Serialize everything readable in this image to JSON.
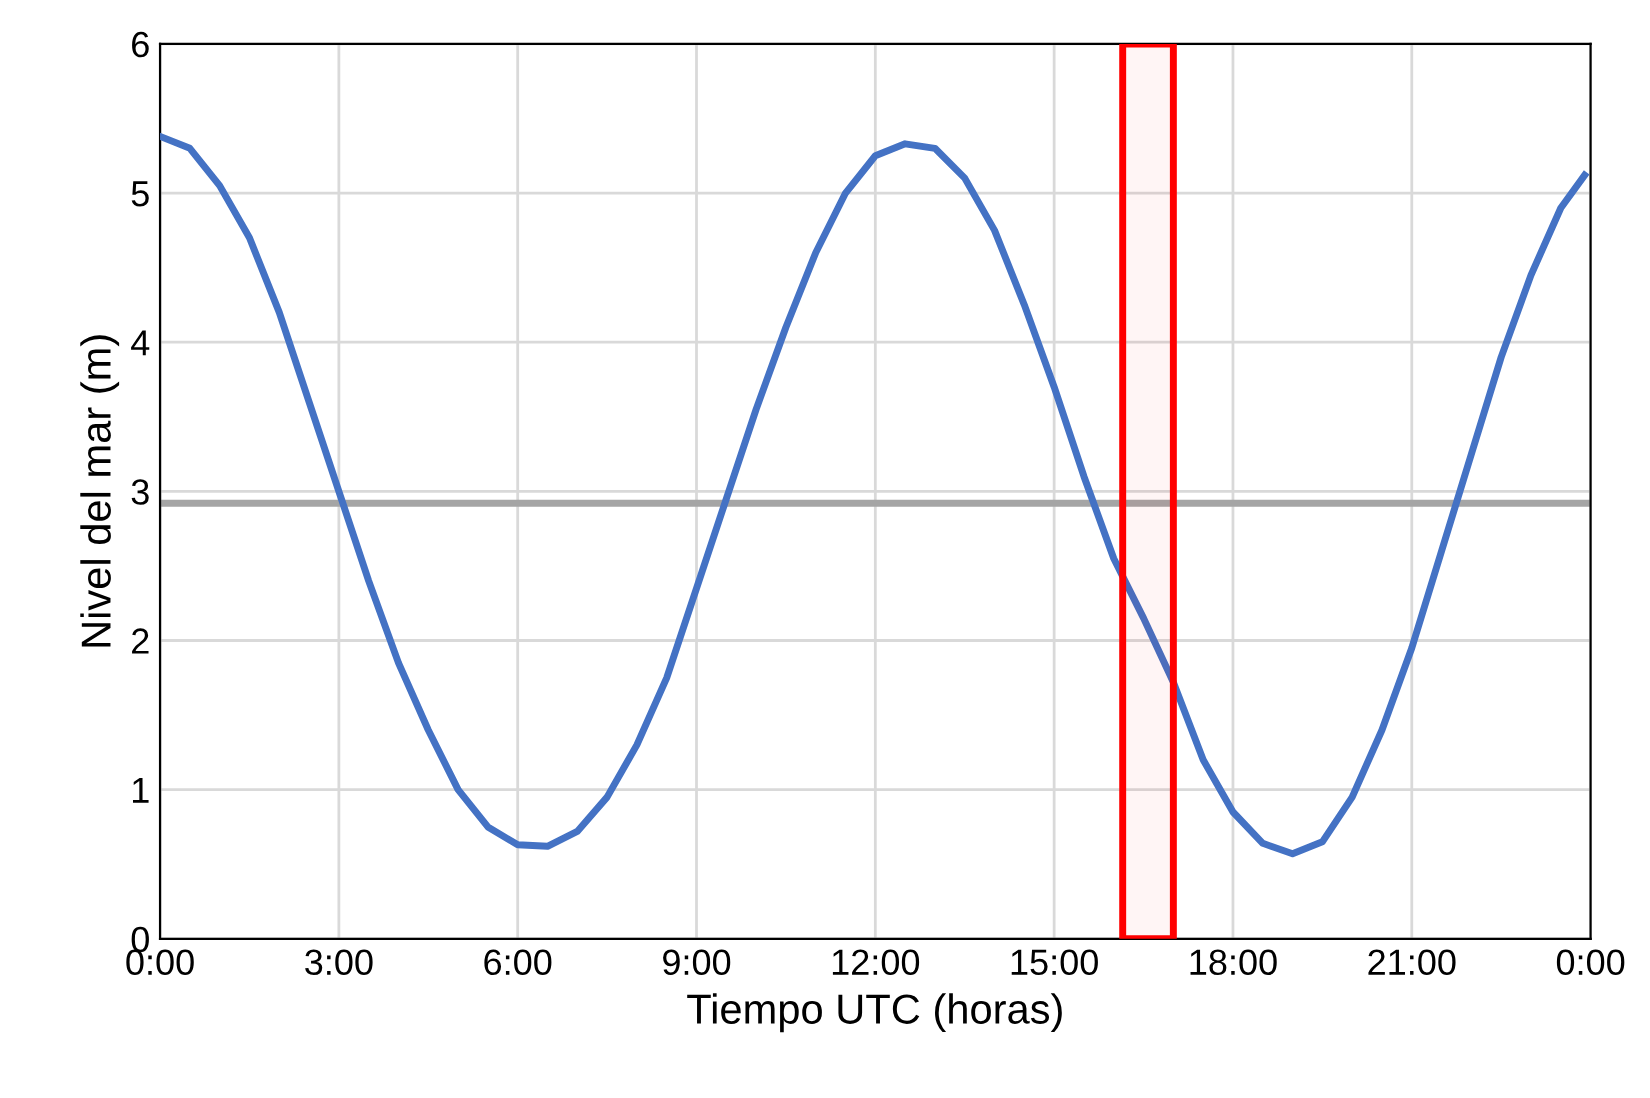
{
  "chart_data": {
    "type": "line",
    "xlabel": "Tiempo UTC (horas)",
    "ylabel": "Nivel del mar (m)",
    "series": [
      {
        "color": "#4472c4",
        "x": [
          0,
          0.5,
          1,
          1.5,
          2,
          2.5,
          3,
          3.5,
          4,
          4.5,
          5,
          5.5,
          6,
          6.5,
          7,
          7.5,
          8,
          8.5,
          9,
          9.5,
          10,
          10.5,
          11,
          11.5,
          12,
          12.5,
          13,
          13.5,
          14,
          14.5,
          15,
          15.5,
          16,
          16.5,
          17,
          17.5,
          18,
          18.5,
          19,
          19.5,
          20,
          20.5,
          21,
          21.5,
          22,
          22.5,
          23,
          23.5,
          23.9
        ],
        "values": [
          5.38,
          5.3,
          5.05,
          4.7,
          4.2,
          3.6,
          3.0,
          2.4,
          1.85,
          1.4,
          1.0,
          0.75,
          0.63,
          0.62,
          0.72,
          0.95,
          1.3,
          1.75,
          2.35,
          2.95,
          3.55,
          4.1,
          4.6,
          5.0,
          5.25,
          5.33,
          5.3,
          5.1,
          4.75,
          4.25,
          3.7,
          3.1,
          2.55,
          2.15,
          1.72,
          1.2,
          0.85,
          0.64,
          0.57,
          0.65,
          0.95,
          1.4,
          1.95,
          2.6,
          3.25,
          3.9,
          4.45,
          4.9,
          5.12
        ]
      }
    ],
    "xlim": [
      0,
      24
    ],
    "xticks": [
      {
        "value": 0,
        "label": "0:00"
      },
      {
        "value": 3,
        "label": "3:00"
      },
      {
        "value": 6,
        "label": "6:00"
      },
      {
        "value": 9,
        "label": "9:00"
      },
      {
        "value": 12,
        "label": "12:00"
      },
      {
        "value": 15,
        "label": "15:00"
      },
      {
        "value": 18,
        "label": "18:00"
      },
      {
        "value": 21,
        "label": "21:00"
      },
      {
        "value": 24,
        "label": "0:00"
      }
    ],
    "ylim": [
      0,
      6
    ],
    "yticks": [
      0,
      1,
      2,
      3,
      4,
      5,
      6
    ],
    "ref_lines": [
      {
        "axis": "y",
        "value": 2.92,
        "color": "#a5a5a5"
      }
    ],
    "bands": [
      {
        "axis": "x",
        "from": 16.15,
        "to": 17.0,
        "color": "#ff0000"
      }
    ],
    "grid": true,
    "marker": "none",
    "line_style": "solid"
  }
}
